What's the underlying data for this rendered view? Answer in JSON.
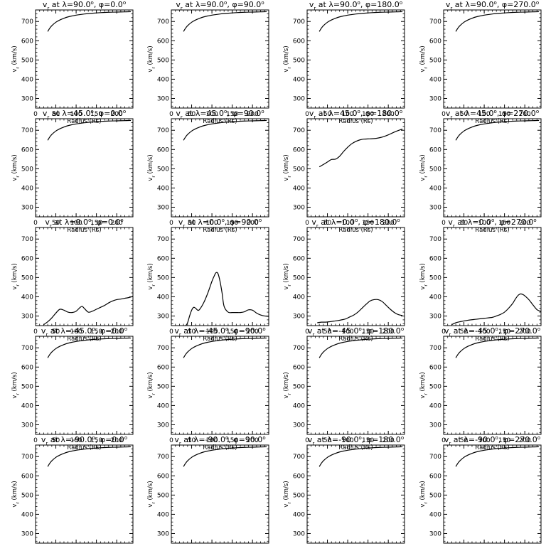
{
  "chart_data": [
    {
      "type": "line",
      "title_parts": {
        "lat": "90.0",
        "lon": "0.0"
      },
      "xlabel": "Radius (Rs)",
      "ylabel": "v_r (km/s)",
      "xlim": [
        0,
        240
      ],
      "ylim": [
        250,
        760
      ],
      "x": [
        30,
        35,
        40,
        50,
        60,
        70,
        80,
        90,
        100,
        120,
        140,
        160,
        180,
        200,
        220,
        235
      ],
      "y": [
        648,
        665,
        678,
        696,
        708,
        717,
        724,
        729,
        733,
        739,
        743,
        746,
        748,
        749,
        750,
        751
      ]
    },
    {
      "type": "line",
      "title_parts": {
        "lat": "90.0",
        "lon": "90.0"
      },
      "xlabel": "Radius (Rs)",
      "ylabel": "v_r (km/s)",
      "xlim": [
        0,
        240
      ],
      "ylim": [
        250,
        760
      ],
      "x": [
        30,
        35,
        40,
        50,
        60,
        70,
        80,
        90,
        100,
        120,
        140,
        160,
        180,
        200,
        220,
        235
      ],
      "y": [
        648,
        665,
        678,
        696,
        708,
        717,
        724,
        729,
        733,
        739,
        743,
        746,
        748,
        749,
        750,
        751
      ]
    },
    {
      "type": "line",
      "title_parts": {
        "lat": "90.0",
        "lon": "180.0"
      },
      "xlabel": "Radius (Rs)",
      "ylabel": "v_r (km/s)",
      "xlim": [
        0,
        240
      ],
      "ylim": [
        250,
        760
      ],
      "x": [
        30,
        35,
        40,
        50,
        60,
        70,
        80,
        90,
        100,
        120,
        140,
        160,
        180,
        200,
        220,
        235
      ],
      "y": [
        648,
        665,
        678,
        696,
        708,
        717,
        724,
        729,
        733,
        739,
        743,
        746,
        748,
        749,
        750,
        751
      ]
    },
    {
      "type": "line",
      "title_parts": {
        "lat": "90.0",
        "lon": "270.0"
      },
      "xlabel": "Radius (Rs)",
      "ylabel": "v_r (km/s)",
      "xlim": [
        0,
        240
      ],
      "ylim": [
        250,
        760
      ],
      "x": [
        30,
        35,
        40,
        50,
        60,
        70,
        80,
        90,
        100,
        120,
        140,
        160,
        180,
        200,
        220,
        235
      ],
      "y": [
        648,
        665,
        678,
        696,
        708,
        717,
        724,
        729,
        733,
        739,
        743,
        746,
        748,
        749,
        750,
        751
      ]
    },
    {
      "type": "line",
      "title_parts": {
        "lat": "45.0",
        "lon": "0.0"
      },
      "xlabel": "Radius (Rs)",
      "ylabel": "v_r (km/s)",
      "xlim": [
        0,
        240
      ],
      "ylim": [
        250,
        760
      ],
      "x": [
        30,
        35,
        40,
        50,
        60,
        70,
        80,
        90,
        100,
        120,
        140,
        160,
        180,
        200,
        220,
        235
      ],
      "y": [
        648,
        665,
        678,
        696,
        708,
        717,
        724,
        729,
        733,
        739,
        743,
        746,
        748,
        749,
        750,
        751
      ]
    },
    {
      "type": "line",
      "title_parts": {
        "lat": "45.0",
        "lon": "90.0"
      },
      "xlabel": "Radius (Rs)",
      "ylabel": "v_r (km/s)",
      "xlim": [
        0,
        240
      ],
      "ylim": [
        250,
        760
      ],
      "x": [
        30,
        35,
        40,
        50,
        60,
        70,
        80,
        90,
        100,
        120,
        140,
        160,
        180,
        200,
        220,
        235
      ],
      "y": [
        648,
        665,
        678,
        696,
        708,
        717,
        724,
        729,
        733,
        739,
        743,
        746,
        748,
        749,
        750,
        751
      ]
    },
    {
      "type": "line",
      "title_parts": {
        "lat": "45.0",
        "lon": "180.0"
      },
      "xlabel": "Radius (Rs)",
      "ylabel": "v_r (km/s)",
      "xlim": [
        0,
        240
      ],
      "ylim": [
        250,
        760
      ],
      "x": [
        30,
        40,
        50,
        60,
        70,
        80,
        90,
        100,
        110,
        120,
        130,
        140,
        150,
        160,
        170,
        180,
        190,
        200,
        210,
        220,
        230,
        235
      ],
      "y": [
        510,
        522,
        535,
        548,
        550,
        565,
        590,
        612,
        630,
        642,
        650,
        654,
        655,
        656,
        658,
        662,
        668,
        676,
        686,
        695,
        703,
        706
      ]
    },
    {
      "type": "line",
      "title_parts": {
        "lat": "45.0",
        "lon": "270.0"
      },
      "xlabel": "Radius (Rs)",
      "ylabel": "v_r (km/s)",
      "xlim": [
        0,
        240
      ],
      "ylim": [
        250,
        760
      ],
      "x": [
        30,
        35,
        40,
        50,
        60,
        70,
        80,
        90,
        100,
        120,
        140,
        160,
        180,
        200,
        220,
        235
      ],
      "y": [
        648,
        665,
        678,
        696,
        708,
        717,
        724,
        729,
        733,
        739,
        743,
        746,
        748,
        749,
        750,
        751
      ]
    },
    {
      "type": "line",
      "title_parts": {
        "lat": "0.0",
        "lon": "0.0"
      },
      "xlabel": "Radius (Rs)",
      "ylabel": "v_r (km/s)",
      "xlim": [
        0,
        240
      ],
      "ylim": [
        250,
        760
      ],
      "x": [
        20,
        30,
        40,
        50,
        60,
        70,
        80,
        90,
        100,
        110,
        115,
        120,
        130,
        140,
        150,
        160,
        170,
        180,
        190,
        200,
        210,
        220,
        230,
        240
      ],
      "y": [
        255,
        270,
        290,
        315,
        335,
        330,
        320,
        318,
        325,
        345,
        350,
        340,
        320,
        325,
        335,
        345,
        355,
        368,
        378,
        385,
        388,
        392,
        396,
        402
      ]
    },
    {
      "type": "line",
      "title_parts": {
        "lat": "0.0",
        "lon": "90.0"
      },
      "xlabel": "Radius (Rs)",
      "ylabel": "v_r (km/s)",
      "xlim": [
        0,
        240
      ],
      "ylim": [
        250,
        760
      ],
      "x": [
        15,
        25,
        35,
        40,
        45,
        50,
        55,
        60,
        65,
        70,
        80,
        90,
        100,
        105,
        110,
        115,
        120,
        125,
        130,
        140,
        150,
        160,
        170,
        180,
        190,
        200,
        210,
        220,
        230,
        240
      ],
      "y": [
        245,
        245,
        250,
        265,
        300,
        330,
        345,
        340,
        330,
        335,
        370,
        420,
        480,
        505,
        525,
        520,
        480,
        420,
        350,
        320,
        318,
        318,
        318,
        322,
        332,
        330,
        315,
        305,
        300,
        298
      ]
    },
    {
      "type": "line",
      "title_parts": {
        "lat": "0.0",
        "lon": "180.0"
      },
      "xlabel": "Radius (Rs)",
      "ylabel": "v_r (km/s)",
      "xlim": [
        0,
        240
      ],
      "ylim": [
        250,
        760
      ],
      "x": [
        25,
        35,
        45,
        55,
        65,
        75,
        85,
        95,
        105,
        115,
        125,
        135,
        145,
        155,
        165,
        175,
        185,
        195,
        205,
        215,
        225,
        235
      ],
      "y": [
        265,
        268,
        268,
        270,
        273,
        276,
        280,
        285,
        295,
        305,
        320,
        340,
        360,
        378,
        385,
        385,
        375,
        355,
        335,
        318,
        307,
        302
      ]
    },
    {
      "type": "line",
      "title_parts": {
        "lat": "0.0",
        "lon": "270.0"
      },
      "xlabel": "Radius (Rs)",
      "ylabel": "v_r (km/s)",
      "xlim": [
        0,
        240
      ],
      "ylim": [
        250,
        760
      ],
      "x": [
        20,
        30,
        40,
        60,
        80,
        100,
        120,
        130,
        140,
        150,
        160,
        170,
        175,
        180,
        185,
        190,
        195,
        200,
        210,
        220,
        230,
        240
      ],
      "y": [
        255,
        265,
        270,
        278,
        283,
        288,
        293,
        300,
        308,
        320,
        340,
        365,
        382,
        398,
        410,
        415,
        412,
        405,
        385,
        358,
        333,
        323
      ]
    },
    {
      "type": "line",
      "title_parts": {
        "lat": "-45.0",
        "lon": "0.0"
      },
      "xlabel": "Radius (Rs)",
      "ylabel": "v_r (km/s)",
      "xlim": [
        0,
        240
      ],
      "ylim": [
        250,
        760
      ],
      "x": [
        30,
        35,
        40,
        50,
        60,
        70,
        80,
        90,
        100,
        120,
        140,
        160,
        180,
        200,
        220,
        235
      ],
      "y": [
        648,
        665,
        678,
        696,
        708,
        717,
        724,
        729,
        733,
        739,
        743,
        746,
        748,
        749,
        750,
        751
      ]
    },
    {
      "type": "line",
      "title_parts": {
        "lat": "-45.0",
        "lon": "90.0"
      },
      "xlabel": "Radius (Rs)",
      "ylabel": "v_r (km/s)",
      "xlim": [
        0,
        240
      ],
      "ylim": [
        250,
        760
      ],
      "x": [
        30,
        35,
        40,
        50,
        60,
        70,
        80,
        90,
        100,
        120,
        140,
        160,
        180,
        200,
        220,
        235
      ],
      "y": [
        648,
        665,
        678,
        696,
        708,
        717,
        724,
        729,
        733,
        739,
        743,
        746,
        748,
        749,
        750,
        751
      ]
    },
    {
      "type": "line",
      "title_parts": {
        "lat": "-45.0",
        "lon": "180.0"
      },
      "xlabel": "Radius (Rs)",
      "ylabel": "v_r (km/s)",
      "xlim": [
        0,
        240
      ],
      "ylim": [
        250,
        760
      ],
      "x": [
        30,
        35,
        40,
        50,
        60,
        70,
        80,
        90,
        100,
        120,
        140,
        160,
        180,
        200,
        220,
        235
      ],
      "y": [
        648,
        665,
        678,
        696,
        708,
        717,
        724,
        729,
        733,
        739,
        743,
        746,
        748,
        749,
        750,
        751
      ]
    },
    {
      "type": "line",
      "title_parts": {
        "lat": "-45.0",
        "lon": "270.0"
      },
      "xlabel": "Radius (Rs)",
      "ylabel": "v_r (km/s)",
      "xlim": [
        0,
        240
      ],
      "ylim": [
        250,
        760
      ],
      "x": [
        30,
        35,
        40,
        50,
        60,
        70,
        80,
        90,
        100,
        120,
        140,
        160,
        180,
        200,
        220,
        235
      ],
      "y": [
        648,
        665,
        678,
        696,
        708,
        717,
        724,
        729,
        733,
        739,
        743,
        746,
        748,
        749,
        750,
        751
      ]
    },
    {
      "type": "line",
      "title_parts": {
        "lat": "-90.0",
        "lon": "0.0"
      },
      "xlabel": "Radius (Rs)",
      "ylabel": "v_r (km/s)",
      "xlim": [
        0,
        240
      ],
      "ylim": [
        250,
        760
      ],
      "x": [
        30,
        35,
        40,
        50,
        60,
        70,
        80,
        90,
        100,
        120,
        140,
        160,
        180,
        200,
        220,
        235
      ],
      "y": [
        648,
        665,
        678,
        696,
        708,
        717,
        724,
        729,
        733,
        739,
        743,
        746,
        748,
        749,
        750,
        751
      ]
    },
    {
      "type": "line",
      "title_parts": {
        "lat": "-90.0",
        "lon": "90.0"
      },
      "xlabel": "Radius (Rs)",
      "ylabel": "v_r (km/s)",
      "xlim": [
        0,
        240
      ],
      "ylim": [
        250,
        760
      ],
      "x": [
        30,
        35,
        40,
        50,
        60,
        70,
        80,
        90,
        100,
        120,
        140,
        160,
        180,
        200,
        220,
        235
      ],
      "y": [
        648,
        665,
        678,
        696,
        708,
        717,
        724,
        729,
        733,
        739,
        743,
        746,
        748,
        749,
        750,
        751
      ]
    },
    {
      "type": "line",
      "title_parts": {
        "lat": "-90.0",
        "lon": "180.0"
      },
      "xlabel": "Radius (Rs)",
      "ylabel": "v_r (km/s)",
      "xlim": [
        0,
        240
      ],
      "ylim": [
        250,
        760
      ],
      "x": [
        30,
        35,
        40,
        50,
        60,
        70,
        80,
        90,
        100,
        120,
        140,
        160,
        180,
        200,
        220,
        235
      ],
      "y": [
        648,
        665,
        678,
        696,
        708,
        717,
        724,
        729,
        733,
        739,
        743,
        746,
        748,
        749,
        750,
        751
      ]
    },
    {
      "type": "line",
      "title_parts": {
        "lat": "-90.0",
        "lon": "270.0"
      },
      "xlabel": "Radius (Rs)",
      "ylabel": "v_r (km/s)",
      "xlim": [
        0,
        240
      ],
      "ylim": [
        250,
        760
      ],
      "x": [
        30,
        35,
        40,
        50,
        60,
        70,
        80,
        90,
        100,
        120,
        140,
        160,
        180,
        200,
        220,
        235
      ],
      "y": [
        648,
        665,
        678,
        696,
        708,
        717,
        724,
        729,
        733,
        739,
        743,
        746,
        748,
        749,
        750,
        751
      ]
    }
  ],
  "axes": {
    "x_ticks": [
      0,
      50,
      100,
      150,
      200
    ],
    "y_ticks": [
      300,
      400,
      500,
      600,
      700
    ]
  }
}
